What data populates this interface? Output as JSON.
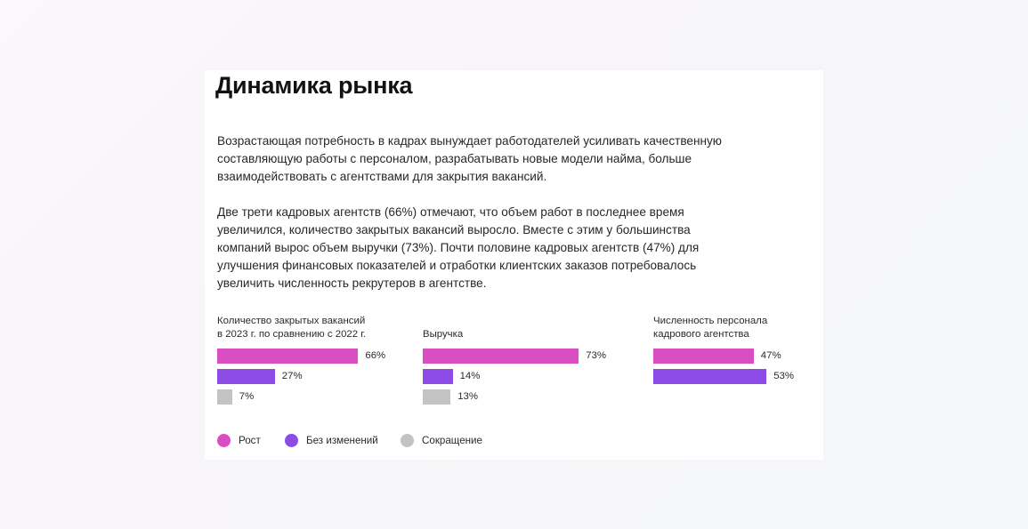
{
  "title": "Динамика рынка",
  "paragraphs": [
    "Возрастающая потребность в кадрах вынуждает работодателей усиливать качественную составляющую работы с персоналом, разрабатывать новые модели найма, больше взаимодействовать с агентствами для закрытия вакансий.",
    "Две трети кадровых агентств (66%) отмечают, что объем работ в последнее время увеличился, количество закрытых вакансий выросло. Вместе с этим у большинства компаний вырос объем выручки (73%). Почти половине кадровых агентств (47%) для улучшения финансовых показателей и отработки клиентских заказов потребовалось увеличить численность рекрутеров в агентстве."
  ],
  "colors": {
    "growth": "#d94fc3",
    "no_change": "#8e4ce6",
    "decrease": "#c3c3c6"
  },
  "legend": [
    {
      "key": "growth",
      "label": "Рост",
      "icon": "dot-icon"
    },
    {
      "key": "no_change",
      "label": "Без изменений",
      "icon": "dot-icon"
    },
    {
      "key": "decrease",
      "label": "Сокращение",
      "icon": "dot-icon"
    }
  ],
  "chart_data": [
    {
      "type": "bar",
      "orientation": "horizontal",
      "title": "Количество закрытых вакансий в 2023 г. по сравнению с 2022 г.",
      "title_lines": [
        "Количество закрытых вакансий",
        "в 2023 г. по сравнению с 2022 г."
      ],
      "categories": [
        "Рост",
        "Без изменений",
        "Сокращение"
      ],
      "values": [
        66,
        27,
        7
      ],
      "labels": [
        "66%",
        "27%",
        "7%"
      ],
      "unit": "%",
      "grid": false,
      "legend_position": "bottom-left"
    },
    {
      "type": "bar",
      "orientation": "horizontal",
      "title": "Выручка",
      "title_lines": [
        "Выручка"
      ],
      "categories": [
        "Рост",
        "Без изменений",
        "Сокращение"
      ],
      "values": [
        73,
        14,
        13
      ],
      "labels": [
        "73%",
        "14%",
        "13%"
      ],
      "unit": "%",
      "grid": false,
      "legend_position": "bottom-left"
    },
    {
      "type": "bar",
      "orientation": "horizontal",
      "title": "Численность персонала кадрового агентства",
      "title_lines": [
        "Численность персонала",
        "кадрового агентства"
      ],
      "categories": [
        "Рост",
        "Без изменений"
      ],
      "values": [
        47,
        53
      ],
      "labels": [
        "47%",
        "53%"
      ],
      "unit": "%",
      "grid": false,
      "legend_position": "bottom-left"
    }
  ]
}
